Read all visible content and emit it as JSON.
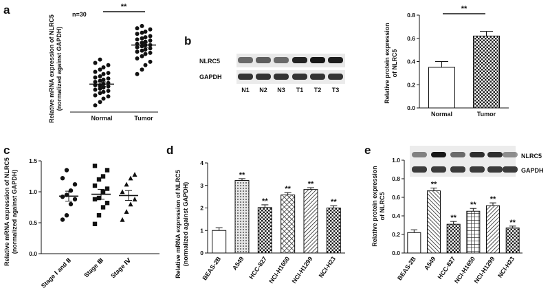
{
  "panels": [
    {
      "letter": "a"
    },
    {
      "letter": "b"
    },
    {
      "letter": "c"
    },
    {
      "letter": "d"
    },
    {
      "letter": "e"
    }
  ],
  "chart_data": [
    {
      "panel": "a",
      "type": "scatter",
      "ylabel_line1": "Relative mRNA expression of NLRC5",
      "ylabel_line2": "(normalized against GAPDH)",
      "annotation": "n=30",
      "significance": "**",
      "categories": [
        "Normal",
        "Tumor"
      ],
      "ylim": [
        0,
        4
      ],
      "mean": [
        1.25,
        3.0
      ],
      "sem": [
        0.1,
        0.1
      ],
      "points": [
        [
          0.3,
          0.45,
          0.6,
          0.7,
          0.75,
          0.85,
          0.9,
          0.95,
          1.0,
          1.05,
          1.1,
          1.15,
          1.2,
          1.2,
          1.25,
          1.3,
          1.35,
          1.4,
          1.45,
          1.5,
          1.55,
          1.6,
          1.7,
          1.75,
          1.8,
          1.9,
          2.0,
          2.1,
          2.2,
          2.35
        ],
        [
          1.7,
          1.9,
          2.1,
          2.25,
          2.4,
          2.5,
          2.6,
          2.65,
          2.7,
          2.75,
          2.8,
          2.85,
          2.9,
          2.95,
          3.0,
          3.0,
          3.05,
          3.1,
          3.15,
          3.2,
          3.25,
          3.3,
          3.35,
          3.4,
          3.5,
          3.55,
          3.6,
          3.7,
          3.75,
          3.85
        ]
      ]
    },
    {
      "panel": "b",
      "type": "bar",
      "ylabel_line1": "Relative protein expression",
      "ylabel_line2": "of NLRC5",
      "significance": "**",
      "categories": [
        "Normal",
        "Tumor"
      ],
      "values": [
        0.35,
        0.62
      ],
      "errors": [
        0.05,
        0.04
      ],
      "yticks": [
        "0.0",
        "0.2",
        "0.4",
        "0.6",
        "0.8"
      ],
      "ylim": [
        0,
        0.8
      ]
    },
    {
      "panel": "c",
      "type": "scatter",
      "ylabel_line1": "Relative mRNA expression of NLRC5",
      "ylabel_line2": "(normalized against GAPDH)",
      "categories": [
        "Stage Ⅰ and Ⅱ",
        "Stage Ⅲ",
        "Stage Ⅳ"
      ],
      "yticks": [
        "0.0",
        "0.5",
        "1.0",
        "1.5"
      ],
      "ylim": [
        0,
        1.5
      ],
      "mean": [
        0.93,
        0.96,
        0.94
      ],
      "sem": [
        0.08,
        0.08,
        0.08
      ],
      "points": [
        [
          0.55,
          0.62,
          0.8,
          0.88,
          0.92,
          0.95,
          1.02,
          1.12,
          1.22,
          1.35
        ],
        [
          0.48,
          0.62,
          0.75,
          0.82,
          0.88,
          0.9,
          1.0,
          1.05,
          1.1,
          1.2,
          1.25,
          1.35,
          1.42
        ],
        [
          0.55,
          0.68,
          0.8,
          0.88,
          1.0,
          1.12,
          1.22,
          1.28
        ]
      ]
    },
    {
      "panel": "d",
      "type": "bar",
      "ylabel_line1": "Relative mRNA expression of NLRC5",
      "ylabel_line2": "(normalized against GAPDH)",
      "categories": [
        "BEAS-2B",
        "A549",
        "HCC-827",
        "NCI-H1650",
        "NCI-H1299",
        "NCI-H23"
      ],
      "values": [
        1.0,
        3.22,
        2.02,
        2.58,
        2.82,
        2.0
      ],
      "errors": [
        0.12,
        0.08,
        0.12,
        0.1,
        0.08,
        0.1
      ],
      "significance": [
        "",
        "**",
        "**",
        "**",
        "**",
        "**"
      ],
      "yticks": [
        "0",
        "1",
        "2",
        "3",
        "4"
      ],
      "ylim": [
        0,
        4
      ]
    },
    {
      "panel": "e",
      "type": "bar",
      "ylabel_line1": "Relative protein expression",
      "ylabel_line2": "of NLRC5",
      "categories": [
        "BEAS-2B",
        "A549",
        "HCC-827",
        "NCI-H1650",
        "NCI-H1299",
        "NCI-H23"
      ],
      "values": [
        0.22,
        0.67,
        0.31,
        0.45,
        0.51,
        0.27
      ],
      "errors": [
        0.03,
        0.03,
        0.03,
        0.03,
        0.03,
        0.02
      ],
      "significance": [
        "",
        "**",
        "**",
        "**",
        "**",
        "**"
      ],
      "yticks": [
        "0.0",
        "0.2",
        "0.4",
        "0.6",
        "0.8",
        "1.0"
      ],
      "ylim": [
        0,
        1.0
      ]
    }
  ],
  "blot_b": {
    "rows": [
      "NLRC5",
      "GAPDH"
    ],
    "lanes": [
      "N1",
      "N2",
      "N3",
      "T1",
      "T2",
      "T3"
    ]
  },
  "blot_e": {
    "rows": [
      "NLRC5",
      "GAPDH"
    ]
  }
}
